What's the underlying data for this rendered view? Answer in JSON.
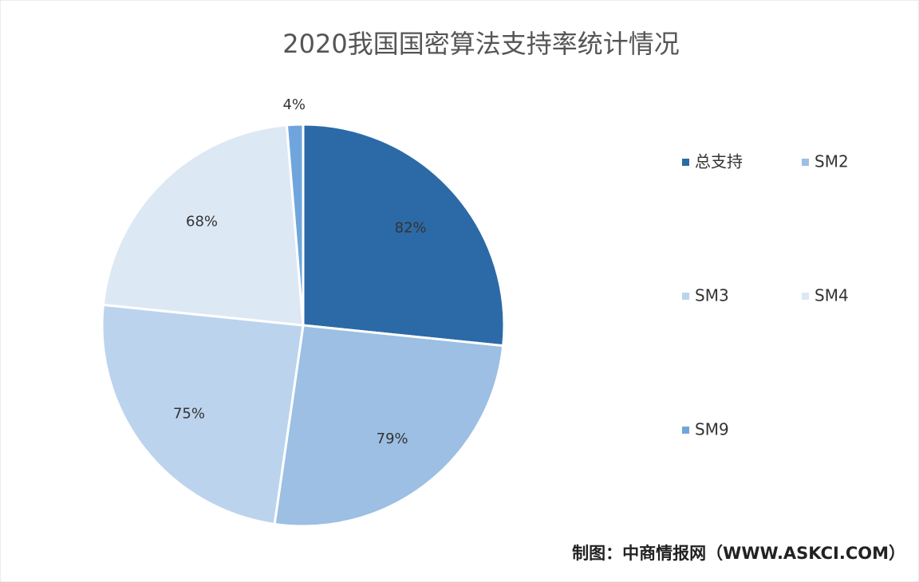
{
  "chart_data": {
    "type": "pie",
    "title": "2020我国国密算法支持率统计情况",
    "categories": [
      "总支持",
      "SM2",
      "SM3",
      "SM4",
      "SM9"
    ],
    "values": [
      82,
      79,
      75,
      68,
      4
    ],
    "value_labels": [
      "82%",
      "79%",
      "75%",
      "68%",
      "4%"
    ],
    "colors": [
      "#2b6aa6",
      "#9cbfe3",
      "#bcd3ed",
      "#dde8f5",
      "#6fa5dc"
    ],
    "source": "制图：中商情报网（WWW.ASKCI.COM）"
  }
}
